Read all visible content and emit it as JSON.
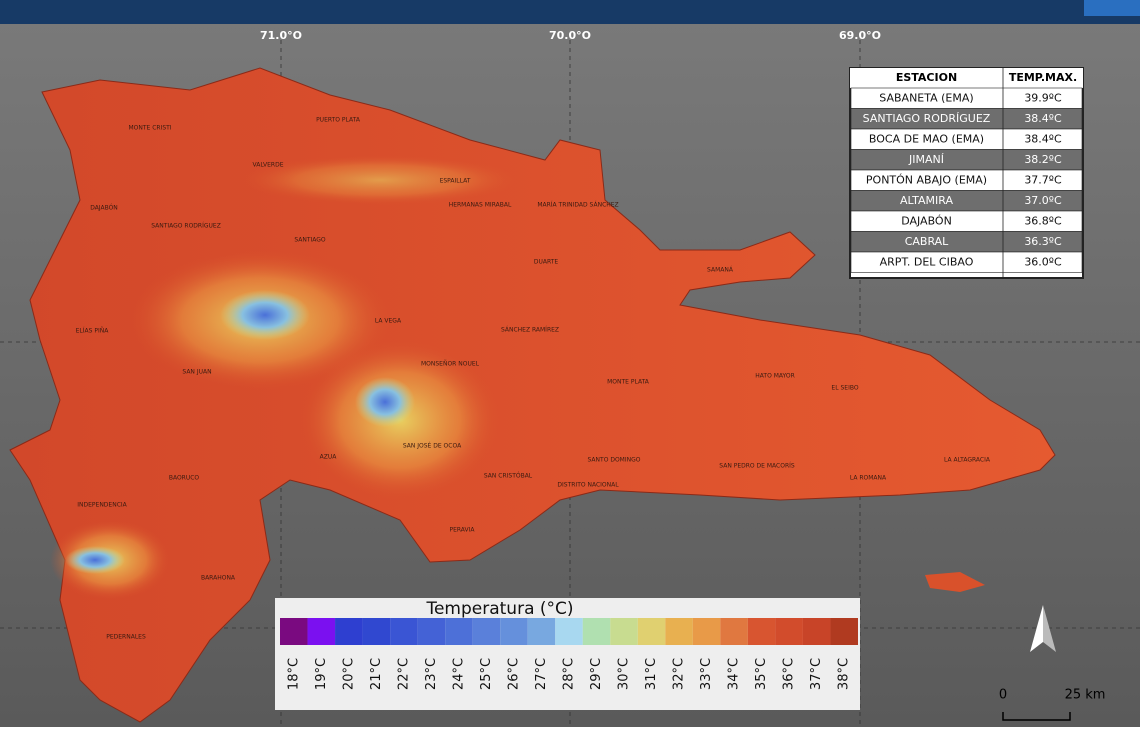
{
  "grid_labels": [
    "71.0°O",
    "70.0°O",
    "69.0°O"
  ],
  "table": {
    "header": [
      "ESTACION",
      "TEMP.MAX."
    ],
    "rows": [
      [
        "SABANETA (EMA)",
        "39.9ºC"
      ],
      [
        "SANTIAGO RODRÍGUEZ",
        "38.4ºC"
      ],
      [
        "BOCA DE MAO (EMA)",
        "38.4ºC"
      ],
      [
        "JIMANÍ",
        "38.2ºC"
      ],
      [
        "PONTÓN ABAJO (EMA)",
        "37.7ºC"
      ],
      [
        "ALTAMIRA",
        "37.0ºC"
      ],
      [
        "DAJABÓN",
        "36.8ºC"
      ],
      [
        "CABRAL",
        "36.3ºC"
      ],
      [
        "ARPT. DEL CIBAO",
        "36.0ºC"
      ]
    ]
  },
  "legend": {
    "title": "Temperatura (°C)",
    "items": [
      {
        "label": "18°C",
        "color": "#7a0a80"
      },
      {
        "label": "19°C",
        "color": "#7b10f0"
      },
      {
        "label": "20°C",
        "color": "#2e3fd0"
      },
      {
        "label": "21°C",
        "color": "#3048d0"
      },
      {
        "label": "22°C",
        "color": "#3a55d4"
      },
      {
        "label": "23°C",
        "color": "#4462d6"
      },
      {
        "label": "24°C",
        "color": "#4d70d8"
      },
      {
        "label": "25°C",
        "color": "#5a80da"
      },
      {
        "label": "26°C",
        "color": "#6590dc"
      },
      {
        "label": "27°C",
        "color": "#78a8e0"
      },
      {
        "label": "28°C",
        "color": "#a8d8f0"
      },
      {
        "label": "29°C",
        "color": "#b0e0b0"
      },
      {
        "label": "30°C",
        "color": "#c8dc90"
      },
      {
        "label": "31°C",
        "color": "#e0d070"
      },
      {
        "label": "32°C",
        "color": "#e8b050"
      },
      {
        "label": "33°C",
        "color": "#e89a48"
      },
      {
        "label": "34°C",
        "color": "#e07840"
      },
      {
        "label": "35°C",
        "color": "#d85530"
      },
      {
        "label": "36°C",
        "color": "#d24c2c"
      },
      {
        "label": "37°C",
        "color": "#c84428"
      },
      {
        "label": "38°C",
        "color": "#b03a20"
      }
    ]
  },
  "scale_labels": [
    "0",
    "25 km"
  ],
  "place_labels": [
    "MONTE CRISTI",
    "PUERTO PLATA",
    "VALVERDE",
    "DAJABÓN",
    "SANTIAGO RODRÍGUEZ",
    "SANTIAGO",
    "ESPAILLAT",
    "HERMANAS MIRABAL",
    "MARÍA TRINIDAD SÁNCHEZ",
    "DUARTE",
    "SAMANÁ",
    "LA VEGA",
    "ELÍAS PIÑA",
    "SÁNCHEZ RAMÍREZ",
    "MONSEÑOR NOUEL",
    "SAN JUAN",
    "MONTE PLATA",
    "HATO MAYOR",
    "EL SEIBO",
    "AZUA",
    "SAN JOSÉ DE OCOA",
    "SAN CRISTÓBAL",
    "SANTO DOMINGO",
    "DISTRITO NACIONAL",
    "SAN PEDRO DE MACORÍS",
    "LA ROMANA",
    "LA ALTAGRACIA",
    "BAORUCO",
    "INDEPENDENCIA",
    "PERAVIA",
    "BARAHONA",
    "PEDERNALES"
  ]
}
